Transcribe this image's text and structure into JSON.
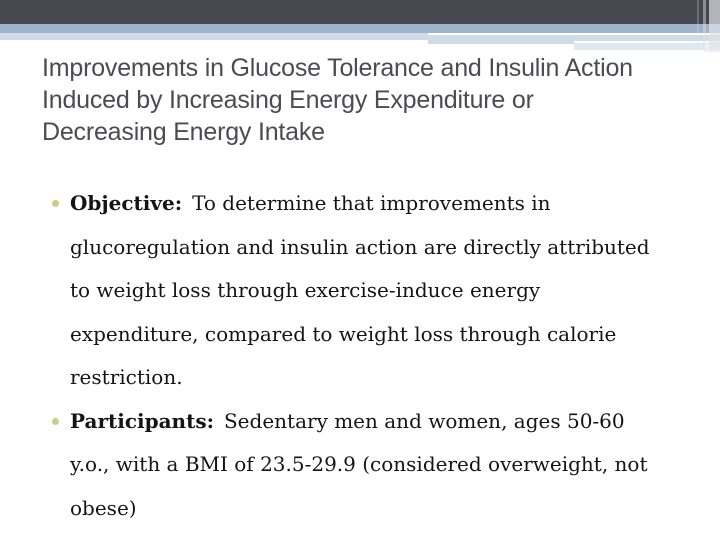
{
  "slide": {
    "title": "Improvements in Glucose Tolerance and Insulin Action\nInduced by Increasing Energy Expenditure or\nDecreasing Energy Intake",
    "bullets": [
      {
        "label": "Objective:",
        "text": "To determine that improvements in\nglucoregulation and insulin action are directly attributed\nto weight loss through exercise-induce energy\nexpenditure, compared to weight loss through calorie\nrestriction."
      },
      {
        "label": "Participants:",
        "text": "Sedentary men and women, ages 50-60\ny.o., with a BMI of 23.5-29.9 (considered overweight, not\nobese)"
      }
    ],
    "colors": {
      "top_bar": "#47474f",
      "band_steel": "#9fb4c9",
      "band_pale": "#cfdbe6",
      "accent_silver": "#b3b3bb",
      "title_text": "#4b4b53",
      "body_text": "#141414",
      "bullet_dot": "#cdcd82"
    }
  }
}
